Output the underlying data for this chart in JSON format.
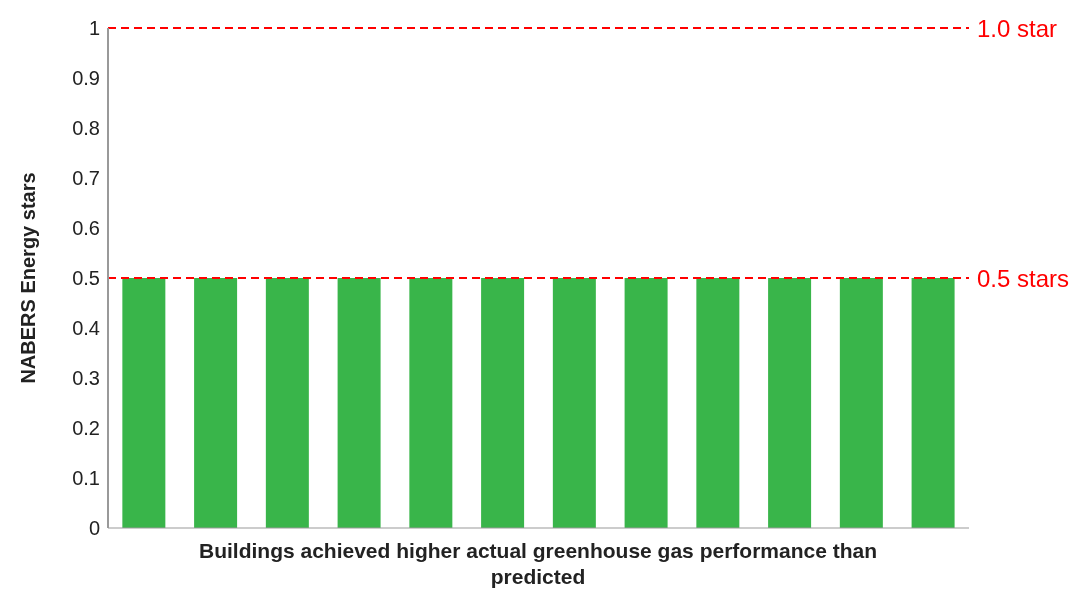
{
  "chart_data": {
    "type": "bar",
    "xlabel": "Buildings achieved higher actual greenhouse gas performance than predicted",
    "ylabel": "NABERS Energy stars",
    "categories": [
      null,
      null,
      null,
      null,
      null,
      null,
      null,
      null,
      null,
      null,
      null,
      null
    ],
    "values": [
      0.5,
      0.5,
      0.5,
      0.5,
      0.5,
      0.5,
      0.5,
      0.5,
      0.5,
      0.5,
      0.5,
      0.5
    ],
    "color": "#39b54a",
    "ylim": [
      0,
      1
    ],
    "yticks": [
      0,
      0.1,
      0.2,
      0.3,
      0.4,
      0.5,
      0.6,
      0.7,
      0.8,
      0.9,
      1
    ],
    "ref_lines": [
      {
        "axis": "y",
        "value": 1,
        "label": "1.0 star",
        "color": "#ff0000",
        "line_style": "dashed"
      },
      {
        "axis": "y",
        "value": 0.5,
        "label": "0.5 stars",
        "color": "#ff0000",
        "line_style": "dashed"
      }
    ]
  }
}
